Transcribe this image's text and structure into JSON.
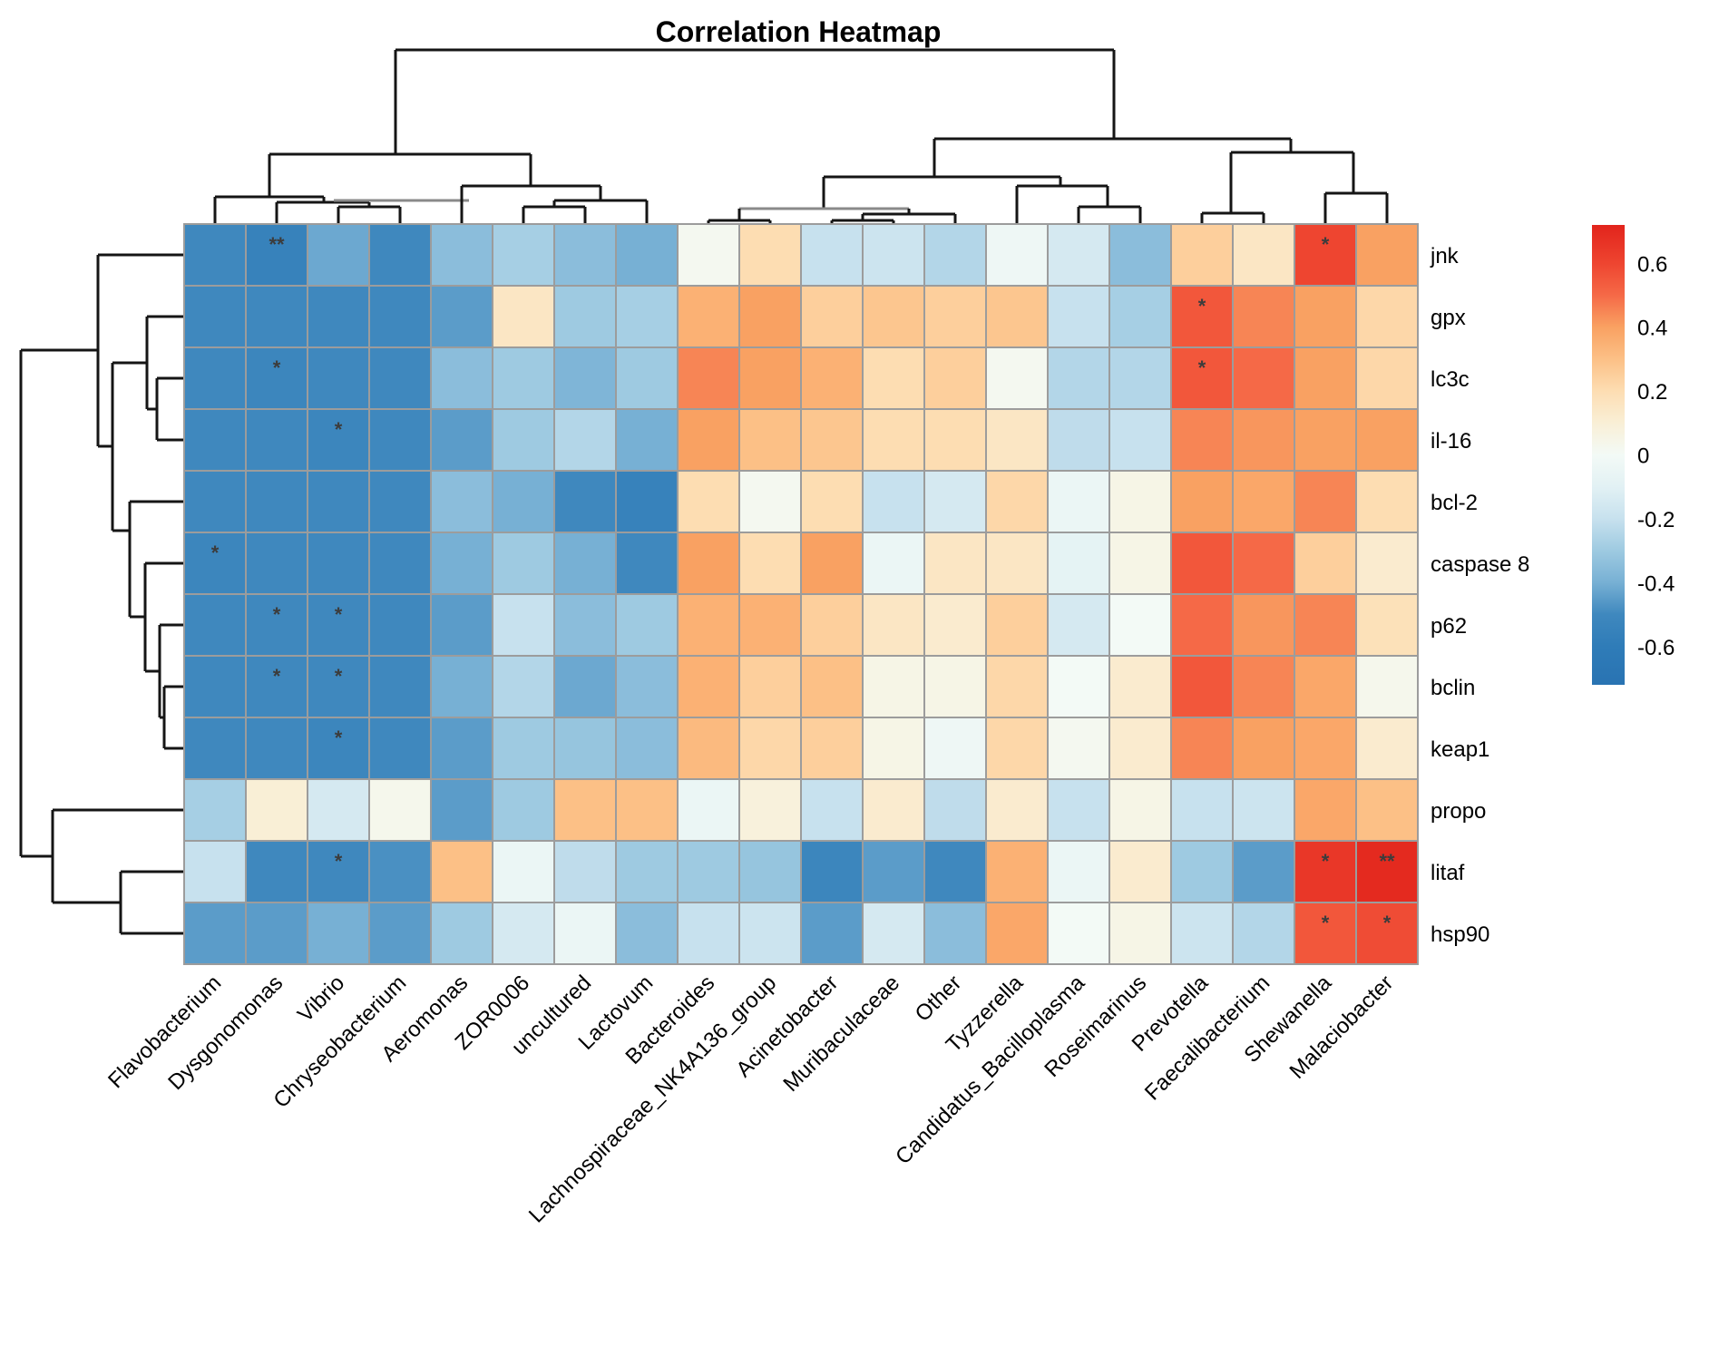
{
  "chart_data": {
    "type": "heatmap",
    "title": "Correlation Heatmap",
    "rows": [
      "jnk",
      "gpx",
      "lc3c",
      "il-16",
      "bcl-2",
      "caspase 8",
      "p62",
      "bclin",
      "keap1",
      "propo",
      "litaf",
      "hsp90"
    ],
    "columns": [
      "Flavobacterium",
      "Dysgonomonas",
      "Vibrio",
      "Chryseobacterium",
      "Aeromonas",
      "ZOR0006",
      "uncultured",
      "Lactovum",
      "Bacteroides",
      "Lachnospiraceae_NK4A136_group",
      "Acinetobacter",
      "Muribaculaceae",
      "Other",
      "Tyzzerella",
      "Candidatus_Bacilloplasma",
      "Roseimarinus",
      "Prevotella",
      "Faecalibacterium",
      "Shewanella",
      "Malaciobacter"
    ],
    "values": [
      [
        -0.5,
        -0.55,
        -0.42,
        -0.5,
        -0.35,
        -0.28,
        -0.35,
        -0.4,
        0.02,
        0.2,
        -0.2,
        -0.18,
        -0.25,
        -0.03,
        -0.15,
        -0.35,
        0.25,
        0.15,
        0.6,
        0.4
      ],
      [
        -0.5,
        -0.5,
        -0.5,
        -0.5,
        -0.45,
        0.15,
        -0.3,
        -0.28,
        0.35,
        0.4,
        0.25,
        0.28,
        0.25,
        0.28,
        -0.2,
        -0.28,
        0.55,
        0.45,
        0.4,
        0.22
      ],
      [
        -0.5,
        -0.52,
        -0.5,
        -0.5,
        -0.35,
        -0.3,
        -0.38,
        -0.3,
        0.45,
        0.4,
        0.35,
        0.2,
        0.25,
        0.02,
        -0.25,
        -0.25,
        0.55,
        0.5,
        0.4,
        0.22
      ],
      [
        -0.5,
        -0.5,
        -0.52,
        -0.5,
        -0.45,
        -0.3,
        -0.25,
        -0.4,
        0.4,
        0.3,
        0.28,
        0.2,
        0.2,
        0.15,
        -0.22,
        -0.2,
        0.45,
        0.42,
        0.4,
        0.4
      ],
      [
        -0.5,
        -0.5,
        -0.5,
        -0.5,
        -0.35,
        -0.4,
        -0.5,
        -0.55,
        0.2,
        0.02,
        0.2,
        -0.2,
        -0.15,
        0.22,
        -0.05,
        0.05,
        0.4,
        0.38,
        0.45,
        0.2
      ],
      [
        -0.52,
        -0.5,
        -0.5,
        -0.5,
        -0.4,
        -0.3,
        -0.4,
        -0.5,
        0.4,
        0.2,
        0.4,
        -0.05,
        0.15,
        0.15,
        -0.08,
        0.05,
        0.55,
        0.5,
        0.25,
        0.12
      ],
      [
        -0.5,
        -0.5,
        -0.5,
        -0.5,
        -0.45,
        -0.2,
        -0.35,
        -0.3,
        0.35,
        0.35,
        0.25,
        0.15,
        0.12,
        0.25,
        -0.15,
        0.0,
        0.5,
        0.42,
        0.45,
        0.18
      ],
      [
        -0.5,
        -0.5,
        -0.5,
        -0.5,
        -0.4,
        -0.25,
        -0.42,
        -0.35,
        0.35,
        0.25,
        0.3,
        0.05,
        0.05,
        0.22,
        0.0,
        0.12,
        0.55,
        0.45,
        0.38,
        0.03
      ],
      [
        -0.5,
        -0.5,
        -0.52,
        -0.5,
        -0.45,
        -0.3,
        -0.32,
        -0.35,
        0.32,
        0.22,
        0.25,
        0.05,
        -0.03,
        0.22,
        0.02,
        0.12,
        0.45,
        0.4,
        0.38,
        0.12
      ],
      [
        -0.28,
        0.1,
        -0.15,
        0.03,
        -0.45,
        -0.3,
        0.3,
        0.3,
        -0.05,
        0.08,
        -0.2,
        0.12,
        -0.22,
        0.12,
        -0.2,
        0.05,
        -0.2,
        -0.18,
        0.38,
        0.3
      ],
      [
        -0.2,
        -0.5,
        -0.5,
        -0.48,
        0.3,
        -0.05,
        -0.22,
        -0.3,
        -0.3,
        -0.32,
        -0.52,
        -0.45,
        -0.5,
        0.35,
        -0.05,
        0.12,
        -0.3,
        -0.45,
        0.65,
        0.7
      ],
      [
        -0.45,
        -0.45,
        -0.4,
        -0.45,
        -0.3,
        -0.15,
        -0.05,
        -0.35,
        -0.2,
        -0.18,
        -0.45,
        -0.15,
        -0.35,
        0.38,
        0.0,
        0.05,
        -0.18,
        -0.25,
        0.55,
        0.58
      ]
    ],
    "significance": [
      [
        "",
        "**",
        "",
        "",
        "",
        "",
        "",
        "",
        "",
        "",
        "",
        "",
        "",
        "",
        "",
        "",
        "",
        "",
        "*",
        ""
      ],
      [
        "",
        "",
        "",
        "",
        "",
        "",
        "",
        "",
        "",
        "",
        "",
        "",
        "",
        "",
        "",
        "",
        "*",
        "",
        "",
        ""
      ],
      [
        "",
        "*",
        "",
        "",
        "",
        "",
        "",
        "",
        "",
        "",
        "",
        "",
        "",
        "",
        "",
        "",
        "*",
        "",
        "",
        ""
      ],
      [
        "",
        "",
        "*",
        "",
        "",
        "",
        "",
        "",
        "",
        "",
        "",
        "",
        "",
        "",
        "",
        "",
        "",
        "",
        "",
        ""
      ],
      [
        "",
        "",
        "",
        "",
        "",
        "",
        "",
        "",
        "",
        "",
        "",
        "",
        "",
        "",
        "",
        "",
        "",
        "",
        "",
        ""
      ],
      [
        "*",
        "",
        "",
        "",
        "",
        "",
        "",
        "",
        "",
        "",
        "",
        "",
        "",
        "",
        "",
        "",
        "",
        "",
        "",
        ""
      ],
      [
        "",
        "*",
        "*",
        "",
        "",
        "",
        "",
        "",
        "",
        "",
        "",
        "",
        "",
        "",
        "",
        "",
        "",
        "",
        "",
        ""
      ],
      [
        "",
        "*",
        "*",
        "",
        "",
        "",
        "",
        "",
        "",
        "",
        "",
        "",
        "",
        "",
        "",
        "",
        "",
        "",
        "",
        ""
      ],
      [
        "",
        "",
        "*",
        "",
        "",
        "",
        "",
        "",
        "",
        "",
        "",
        "",
        "",
        "",
        "",
        "",
        "",
        "",
        "",
        ""
      ],
      [
        "",
        "",
        "",
        "",
        "",
        "",
        "",
        "",
        "",
        "",
        "",
        "",
        "",
        "",
        "",
        "",
        "",
        "",
        "",
        ""
      ],
      [
        "",
        "",
        "*",
        "",
        "",
        "",
        "",
        "",
        "",
        "",
        "",
        "",
        "",
        "",
        "",
        "",
        "",
        "",
        "*",
        "**"
      ],
      [
        "",
        "",
        "",
        "",
        "",
        "",
        "",
        "",
        "",
        "",
        "",
        "",
        "",
        "",
        "",
        "",
        "",
        "",
        "*",
        "*"
      ]
    ],
    "value_range": [
      -0.72,
      0.72
    ],
    "colorbar_ticks": [
      0.6,
      0.4,
      0.2,
      0,
      -0.2,
      -0.4,
      -0.6
    ],
    "colormap_stops": [
      [
        0.72,
        "#e2241c"
      ],
      [
        0.6,
        "#ee4530"
      ],
      [
        0.5,
        "#f56947"
      ],
      [
        0.4,
        "#f9a162"
      ],
      [
        0.3,
        "#fcc086"
      ],
      [
        0.2,
        "#fdddb2"
      ],
      [
        0.1,
        "#f9efd6"
      ],
      [
        0.0,
        "#f3faf6"
      ],
      [
        -0.1,
        "#e2f1f4"
      ],
      [
        -0.2,
        "#c7e1ee"
      ],
      [
        -0.3,
        "#9ecae1"
      ],
      [
        -0.4,
        "#77b0d4"
      ],
      [
        -0.5,
        "#3f88be"
      ],
      [
        -0.6,
        "#2f7cb8"
      ],
      [
        -0.72,
        "#2973b2"
      ]
    ],
    "grid_color": "#9c9c9c",
    "dendrogram_color": "#151515",
    "dendrogram_alt_color": "#8a8a8a",
    "top_dendrogram_segments": [
      [
        436,
        55,
        1228,
        55,
        "k"
      ],
      [
        436,
        55,
        436,
        170,
        "k"
      ],
      [
        1228,
        55,
        1228,
        153,
        "k"
      ],
      [
        297,
        170,
        585,
        170,
        "k"
      ],
      [
        297,
        170,
        297,
        217,
        "k"
      ],
      [
        585,
        170,
        585,
        205,
        "k"
      ],
      [
        237,
        217,
        357,
        217,
        "k"
      ],
      [
        237,
        217,
        237,
        247,
        "k"
      ],
      [
        357,
        217,
        357,
        223,
        "k"
      ],
      [
        305,
        223,
        407,
        223,
        "k"
      ],
      [
        305,
        223,
        305,
        247,
        "k"
      ],
      [
        407,
        223,
        407,
        228,
        "k"
      ],
      [
        368,
        221,
        517,
        221,
        "g"
      ],
      [
        373,
        228,
        441,
        228,
        "k"
      ],
      [
        373,
        228,
        373,
        247,
        "k"
      ],
      [
        441,
        228,
        441,
        247,
        "k"
      ],
      [
        509,
        205,
        662,
        205,
        "k"
      ],
      [
        509,
        205,
        509,
        247,
        "k"
      ],
      [
        662,
        205,
        662,
        221,
        "k"
      ],
      [
        611,
        221,
        713,
        221,
        "k"
      ],
      [
        611,
        221,
        611,
        228,
        "k"
      ],
      [
        713,
        221,
        713,
        247,
        "k"
      ],
      [
        577,
        228,
        645,
        228,
        "k"
      ],
      [
        577,
        228,
        577,
        247,
        "k"
      ],
      [
        645,
        228,
        645,
        247,
        "k"
      ],
      [
        1030,
        153,
        1423,
        153,
        "k"
      ],
      [
        1030,
        153,
        1030,
        195,
        "k"
      ],
      [
        1423,
        153,
        1423,
        168,
        "k"
      ],
      [
        908,
        195,
        1169,
        195,
        "k"
      ],
      [
        908,
        195,
        908,
        230,
        "k"
      ],
      [
        1169,
        195,
        1169,
        205,
        "k"
      ],
      [
        815,
        230,
        1002,
        230,
        "g"
      ],
      [
        815,
        230,
        815,
        243,
        "k"
      ],
      [
        1002,
        230,
        1002,
        236,
        "k"
      ],
      [
        781,
        243,
        849,
        243,
        "k"
      ],
      [
        781,
        243,
        781,
        247,
        "k"
      ],
      [
        849,
        243,
        849,
        247,
        "k"
      ],
      [
        951,
        236,
        1053,
        236,
        "k"
      ],
      [
        951,
        236,
        951,
        243,
        "k"
      ],
      [
        1053,
        236,
        1053,
        247,
        "k"
      ],
      [
        917,
        243,
        985,
        243,
        "k"
      ],
      [
        917,
        243,
        917,
        247,
        "k"
      ],
      [
        985,
        243,
        985,
        247,
        "k"
      ],
      [
        1121,
        205,
        1221,
        205,
        "k"
      ],
      [
        1121,
        205,
        1121,
        247,
        "k"
      ],
      [
        1221,
        205,
        1221,
        228,
        "k"
      ],
      [
        1189,
        228,
        1257,
        228,
        "k"
      ],
      [
        1189,
        228,
        1189,
        247,
        "k"
      ],
      [
        1257,
        228,
        1257,
        247,
        "k"
      ],
      [
        1357,
        168,
        1492,
        168,
        "k"
      ],
      [
        1357,
        168,
        1357,
        235,
        "k"
      ],
      [
        1492,
        168,
        1492,
        213,
        "k"
      ],
      [
        1325,
        235,
        1393,
        235,
        "k"
      ],
      [
        1325,
        235,
        1325,
        247,
        "k"
      ],
      [
        1393,
        235,
        1393,
        247,
        "k"
      ],
      [
        1461,
        213,
        1529,
        213,
        "k"
      ],
      [
        1461,
        213,
        1461,
        247,
        "k"
      ],
      [
        1529,
        213,
        1529,
        247,
        "k"
      ]
    ],
    "left_dendrogram_segments": [
      [
        23,
        386,
        23,
        944,
        "k"
      ],
      [
        23,
        386,
        108,
        386,
        "k"
      ],
      [
        23,
        944,
        58,
        944,
        "k"
      ],
      [
        108,
        281,
        108,
        492,
        "k"
      ],
      [
        108,
        281,
        203,
        281,
        "k"
      ],
      [
        108,
        492,
        124,
        492,
        "k"
      ],
      [
        124,
        400,
        124,
        585,
        "k"
      ],
      [
        124,
        400,
        162,
        400,
        "k"
      ],
      [
        124,
        585,
        143,
        585,
        "k"
      ],
      [
        162,
        349,
        162,
        451,
        "k"
      ],
      [
        162,
        349,
        203,
        349,
        "k"
      ],
      [
        162,
        451,
        173,
        451,
        "k"
      ],
      [
        173,
        417,
        173,
        485,
        "k"
      ],
      [
        173,
        417,
        203,
        417,
        "k"
      ],
      [
        173,
        485,
        203,
        485,
        "k"
      ],
      [
        143,
        553,
        143,
        680,
        "k"
      ],
      [
        143,
        553,
        203,
        553,
        "k"
      ],
      [
        143,
        680,
        160,
        680,
        "k"
      ],
      [
        160,
        621,
        160,
        740,
        "k"
      ],
      [
        160,
        621,
        203,
        621,
        "k"
      ],
      [
        160,
        740,
        176,
        740,
        "k"
      ],
      [
        176,
        689,
        176,
        791,
        "k"
      ],
      [
        176,
        689,
        203,
        689,
        "k"
      ],
      [
        176,
        791,
        181,
        791,
        "k"
      ],
      [
        181,
        757,
        181,
        825,
        "k"
      ],
      [
        181,
        757,
        203,
        757,
        "k"
      ],
      [
        181,
        825,
        203,
        825,
        "k"
      ],
      [
        58,
        893,
        58,
        995,
        "k"
      ],
      [
        58,
        893,
        203,
        893,
        "k"
      ],
      [
        58,
        995,
        133,
        995,
        "k"
      ],
      [
        133,
        961,
        133,
        1029,
        "k"
      ],
      [
        133,
        961,
        203,
        961,
        "k"
      ],
      [
        133,
        1029,
        203,
        1029,
        "k"
      ]
    ]
  }
}
